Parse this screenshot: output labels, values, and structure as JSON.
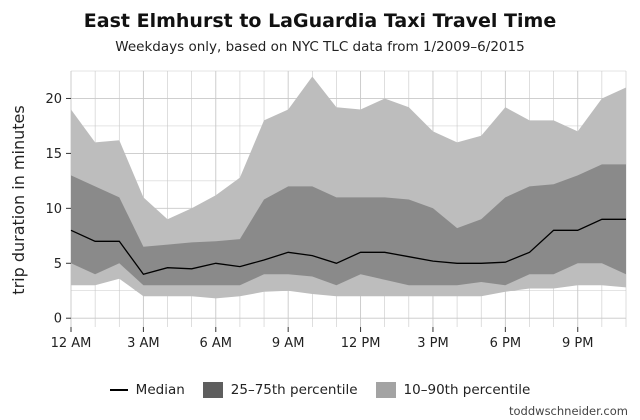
{
  "header": {
    "title": "East Elmhurst to LaGuardia Taxi Travel Time",
    "subtitle": "Weekdays only, based on NYC TLC data from 1/2009–6/2015"
  },
  "legend": {
    "median_label": "Median",
    "iqr_label": "25–75th percentile",
    "p10_90_label": "10–90th percentile"
  },
  "credit": "toddwschneider.com",
  "colors": {
    "band_10_90": "#bdbdbd",
    "band_25_75": "#7a7a7a",
    "median": "#000000",
    "grid": "#c8c8c8"
  },
  "chart_data": {
    "type": "area",
    "title": "East Elmhurst to LaGuardia Taxi Travel Time",
    "subtitle": "Weekdays only, based on NYC TLC data from 1/2009–6/2015",
    "xlabel": "",
    "ylabel": "trip duration in minutes",
    "x_hours": [
      0,
      1,
      2,
      3,
      4,
      5,
      6,
      7,
      8,
      9,
      10,
      11,
      12,
      13,
      14,
      15,
      16,
      17,
      18,
      19,
      20,
      21,
      22,
      23
    ],
    "x_ticks": [
      0,
      3,
      6,
      9,
      12,
      15,
      18,
      21
    ],
    "x_tick_labels": [
      "12 AM",
      "3 AM",
      "6 AM",
      "9 AM",
      "12 PM",
      "3 PM",
      "6 PM",
      "9 PM"
    ],
    "xlim": [
      0,
      23
    ],
    "ylim": [
      -0.8,
      22.5
    ],
    "y_ticks": [
      0,
      5,
      10,
      15,
      20
    ],
    "grid": true,
    "legend_position": "bottom",
    "series": [
      {
        "name": "Median",
        "values": [
          8,
          7,
          7,
          4,
          4.6,
          4.5,
          5,
          4.7,
          5.3,
          6,
          5.7,
          5,
          6,
          6,
          5.6,
          5.2,
          5,
          5,
          5.1,
          6,
          8,
          8,
          9,
          9
        ]
      },
      {
        "name": "25–75th percentile",
        "lower": [
          5,
          4,
          5,
          3,
          3,
          3,
          3,
          3,
          4,
          4,
          3.8,
          3,
          4,
          3.5,
          3,
          3,
          3,
          3.3,
          3,
          4,
          4,
          5,
          5,
          4
        ],
        "upper": [
          13,
          12,
          11,
          6.5,
          6.7,
          6.9,
          7,
          7.2,
          10.8,
          12,
          12,
          11,
          11,
          11,
          10.8,
          10,
          8.2,
          9,
          11,
          12,
          12.2,
          13,
          14,
          14
        ]
      },
      {
        "name": "10–90th percentile",
        "lower": [
          3,
          3,
          3.6,
          2,
          2,
          2,
          1.8,
          2,
          2.4,
          2.5,
          2.2,
          2,
          2,
          2,
          2,
          2,
          2,
          2,
          2.4,
          2.7,
          2.7,
          3,
          3,
          2.8
        ],
        "upper": [
          19,
          16,
          16.2,
          11,
          9,
          10,
          11.2,
          12.8,
          18,
          19,
          22,
          19.2,
          19,
          20,
          19.2,
          17,
          16,
          16.6,
          19.2,
          18,
          18,
          17,
          20,
          21
        ]
      }
    ]
  }
}
